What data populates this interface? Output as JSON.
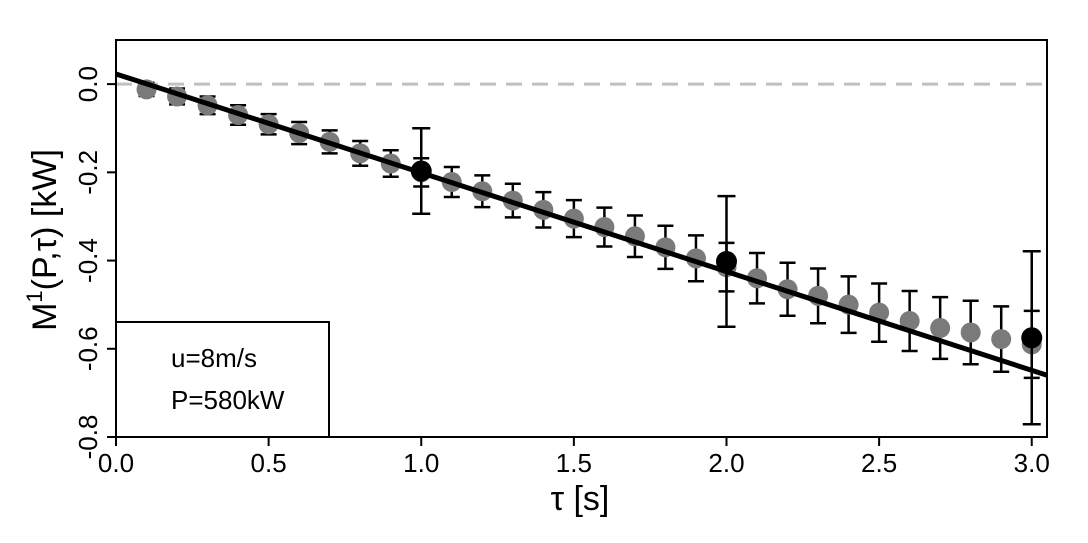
{
  "chart_data": {
    "type": "scatter",
    "xlabel": "τ [s]",
    "ylabel_main": "M",
    "ylabel_sup": "1",
    "ylabel_rest": "(P,τ) [kW]",
    "xlim": [
      0.0,
      3.05
    ],
    "ylim": [
      -0.8,
      0.1
    ],
    "xticks": [
      "0.0",
      "0.5",
      "1.0",
      "1.5",
      "2.0",
      "2.5",
      "3.0"
    ],
    "yticks": [
      "0.0",
      "-0.2",
      "-0.4",
      "-0.6",
      "-0.8"
    ],
    "grid": false,
    "legend_box": {
      "position": "bottom-left",
      "lines": [
        "u=8m/s",
        "P=580kW"
      ]
    },
    "colors": {
      "small_points": "#7a7a7a",
      "large_points": "#000000",
      "fit_line": "#000000",
      "zero_line": "#c0c0c0"
    },
    "zero_line": {
      "y": 0.0,
      "style": "dashed"
    },
    "fit_line": {
      "x": [
        0.0,
        3.05
      ],
      "y": [
        0.023,
        -0.66
      ]
    },
    "series": [
      {
        "style": "small-grey",
        "x": [
          0.1,
          0.2,
          0.3,
          0.4,
          0.5,
          0.6,
          0.7,
          0.8,
          0.9,
          1.0,
          1.1,
          1.2,
          1.3,
          1.4,
          1.5,
          1.6,
          1.7,
          1.8,
          1.9,
          2.0,
          2.1,
          2.2,
          2.3,
          2.4,
          2.5,
          2.6,
          2.7,
          2.8,
          2.9,
          3.0
        ],
        "y": [
          -0.012,
          -0.028,
          -0.048,
          -0.07,
          -0.091,
          -0.111,
          -0.131,
          -0.157,
          -0.18,
          -0.2,
          -0.222,
          -0.243,
          -0.264,
          -0.285,
          -0.305,
          -0.324,
          -0.345,
          -0.37,
          -0.395,
          -0.415,
          -0.44,
          -0.465,
          -0.48,
          -0.5,
          -0.518,
          -0.537,
          -0.553,
          -0.563,
          -0.578,
          -0.59
        ],
        "err": [
          0.015,
          0.018,
          0.02,
          0.022,
          0.023,
          0.025,
          0.026,
          0.028,
          0.03,
          0.032,
          0.034,
          0.036,
          0.038,
          0.04,
          0.042,
          0.044,
          0.047,
          0.049,
          0.052,
          0.055,
          0.057,
          0.06,
          0.062,
          0.064,
          0.066,
          0.068,
          0.07,
          0.072,
          0.074,
          0.076
        ]
      },
      {
        "style": "large-black",
        "x": [
          1.0,
          2.0,
          3.0
        ],
        "y": [
          -0.197,
          -0.402,
          -0.575
        ],
        "err": [
          0.097,
          0.148,
          0.196
        ]
      }
    ]
  }
}
